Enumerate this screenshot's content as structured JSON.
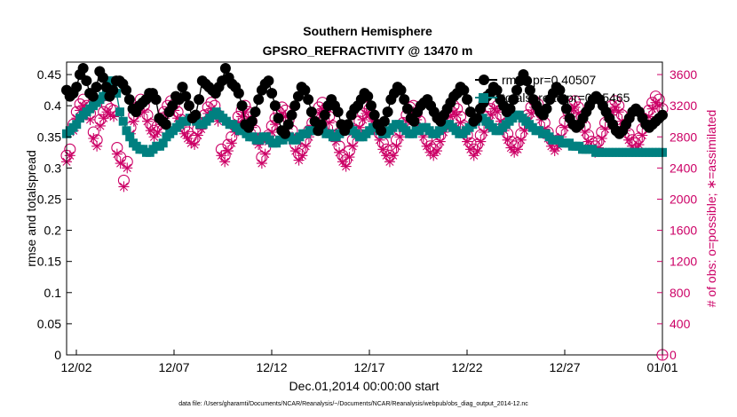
{
  "chart_data": {
    "type": "scatter",
    "title": "Southern Hemisphere",
    "subtitle": "GPSRO_REFRACTIVITY @ 13470 m",
    "xlabel": "Dec.01,2014 00:00:00 start",
    "ylabel_left": "rmse and totalspread",
    "ylabel_right": "# of obs: o=possible; ∗=assimilated",
    "footnote": "data file: /Users/gharamti/Documents/NCAR/Reanalysis/~/Documents/NCAR/Reanalysis/webpub/obs_diag_output_2014-12.nc",
    "x_ticks": [
      {
        "day": 2,
        "label": "12/02"
      },
      {
        "day": 7,
        "label": "12/07"
      },
      {
        "day": 12,
        "label": "12/12"
      },
      {
        "day": 17,
        "label": "12/17"
      },
      {
        "day": 22,
        "label": "12/22"
      },
      {
        "day": 27,
        "label": "12/27"
      },
      {
        "day": 32,
        "label": "01/01"
      }
    ],
    "xlim": [
      1.5,
      32.0
    ],
    "ylim_left": [
      0,
      0.47
    ],
    "yticks_left": [
      "0",
      "0.05",
      "0.1",
      "0.15",
      "0.2",
      "0.25",
      "0.3",
      "0.35",
      "0.4",
      "0.45"
    ],
    "ylim_right": [
      0,
      3760
    ],
    "yticks_right": [
      "0",
      "400",
      "800",
      "1200",
      "1600",
      "2000",
      "2400",
      "2800",
      "3200",
      "3600"
    ],
    "grid": false,
    "legend_position": "top-right",
    "colors": {
      "rmse": "#000000",
      "spread": "#008080",
      "obs": "#cc0066"
    },
    "series": [
      {
        "name": "rmse pr=0.40507",
        "axis": "left",
        "marker": "filled-circle",
        "color": "#000000",
        "values": [
          0.425,
          0.415,
          0.42,
          0.43,
          0.45,
          0.46,
          0.44,
          0.42,
          0.415,
          0.43,
          0.455,
          0.445,
          0.43,
          0.415,
          0.425,
          0.44,
          0.44,
          0.435,
          0.425,
          0.41,
          0.395,
          0.39,
          0.4,
          0.405,
          0.41,
          0.42,
          0.42,
          0.41,
          0.38,
          0.375,
          0.37,
          0.39,
          0.4,
          0.415,
          0.41,
          0.43,
          0.415,
          0.4,
          0.38,
          0.385,
          0.41,
          0.44,
          0.435,
          0.43,
          0.425,
          0.42,
          0.43,
          0.44,
          0.46,
          0.445,
          0.435,
          0.43,
          0.42,
          0.4,
          0.37,
          0.365,
          0.375,
          0.39,
          0.41,
          0.425,
          0.435,
          0.44,
          0.42,
          0.4,
          0.38,
          0.36,
          0.355,
          0.37,
          0.385,
          0.4,
          0.415,
          0.43,
          0.425,
          0.41,
          0.39,
          0.375,
          0.36,
          0.37,
          0.385,
          0.4,
          0.41,
          0.4,
          0.39,
          0.37,
          0.36,
          0.37,
          0.385,
          0.395,
          0.4,
          0.41,
          0.42,
          0.415,
          0.4,
          0.385,
          0.37,
          0.36,
          0.375,
          0.39,
          0.41,
          0.42,
          0.43,
          0.425,
          0.41,
          0.395,
          0.38,
          0.375,
          0.39,
          0.4,
          0.405,
          0.41,
          0.4,
          0.39,
          0.38,
          0.375,
          0.385,
          0.395,
          0.405,
          0.415,
          0.42,
          0.43,
          0.425,
          0.41,
          0.39,
          0.375,
          0.38,
          0.395,
          0.405,
          0.415,
          0.42,
          0.43,
          0.425,
          0.41,
          0.4,
          0.39,
          0.395,
          0.41,
          0.425,
          0.44,
          0.45,
          0.44,
          0.425,
          0.41,
          0.4,
          0.39,
          0.385,
          0.395,
          0.41,
          0.42,
          0.43,
          0.425,
          0.41,
          0.395,
          0.38,
          0.37,
          0.365,
          0.37,
          0.38,
          0.39,
          0.4,
          0.41,
          0.415,
          0.41,
          0.4,
          0.39,
          0.38,
          0.37,
          0.36,
          0.355,
          0.36,
          0.37,
          0.38,
          0.39,
          0.395,
          0.39,
          0.38,
          0.37,
          0.365,
          0.37,
          0.375,
          0.38,
          0.385
        ]
      },
      {
        "name": "totalspread pr=0.35465",
        "axis": "left",
        "marker": "filled-square",
        "color": "#008080",
        "values": [
          0.355,
          0.36,
          0.365,
          0.37,
          0.38,
          0.385,
          0.39,
          0.395,
          0.4,
          0.405,
          0.41,
          0.415,
          0.42,
          0.44,
          0.435,
          0.42,
          0.39,
          0.375,
          0.36,
          0.35,
          0.34,
          0.335,
          0.33,
          0.33,
          0.325,
          0.325,
          0.33,
          0.335,
          0.335,
          0.34,
          0.35,
          0.355,
          0.36,
          0.365,
          0.37,
          0.375,
          0.375,
          0.38,
          0.38,
          0.375,
          0.37,
          0.37,
          0.375,
          0.38,
          0.385,
          0.39,
          0.385,
          0.38,
          0.375,
          0.37,
          0.37,
          0.365,
          0.36,
          0.36,
          0.355,
          0.35,
          0.35,
          0.345,
          0.345,
          0.35,
          0.35,
          0.345,
          0.34,
          0.34,
          0.345,
          0.345,
          0.35,
          0.35,
          0.345,
          0.345,
          0.35,
          0.355,
          0.355,
          0.36,
          0.36,
          0.365,
          0.36,
          0.36,
          0.355,
          0.355,
          0.35,
          0.35,
          0.355,
          0.36,
          0.36,
          0.365,
          0.36,
          0.355,
          0.35,
          0.35,
          0.355,
          0.36,
          0.365,
          0.365,
          0.36,
          0.355,
          0.355,
          0.36,
          0.365,
          0.37,
          0.37,
          0.365,
          0.36,
          0.355,
          0.355,
          0.36,
          0.36,
          0.365,
          0.365,
          0.36,
          0.355,
          0.355,
          0.36,
          0.365,
          0.37,
          0.37,
          0.365,
          0.36,
          0.355,
          0.355,
          0.36,
          0.365,
          0.37,
          0.375,
          0.38,
          0.38,
          0.375,
          0.37,
          0.365,
          0.36,
          0.36,
          0.365,
          0.37,
          0.375,
          0.38,
          0.385,
          0.385,
          0.38,
          0.375,
          0.37,
          0.365,
          0.36,
          0.36,
          0.355,
          0.355,
          0.35,
          0.345,
          0.345,
          0.345,
          0.34,
          0.34,
          0.34,
          0.335,
          0.335,
          0.335,
          0.33,
          0.33,
          0.33,
          0.33,
          0.325,
          0.325,
          0.325,
          0.325,
          0.325,
          0.325,
          0.325,
          0.325,
          0.325,
          0.325,
          0.325,
          0.325,
          0.325,
          0.325,
          0.325,
          0.325,
          0.325,
          0.325,
          0.325,
          0.325,
          0.325
        ]
      },
      {
        "name": "possible",
        "axis": "right",
        "marker": "open-circle",
        "color": "#cc0066",
        "values": [
          2560,
          2640,
          2960,
          3120,
          3220,
          3280,
          3200,
          3100,
          2860,
          2760,
          3020,
          3120,
          3200,
          3160,
          3140,
          2660,
          2540,
          2240,
          2480,
          2920,
          3080,
          3180,
          3280,
          3200,
          3080,
          2960,
          2880,
          2940,
          3040,
          3120,
          3200,
          3260,
          3220,
          3120,
          3020,
          2920,
          2860,
          2800,
          2780,
          2900,
          2980,
          3080,
          3180,
          3240,
          3200,
          3080,
          2640,
          2560,
          2700,
          2800,
          2940,
          3060,
          3140,
          3200,
          3120,
          3000,
          2880,
          2780,
          2540,
          2660,
          2820,
          2940,
          3040,
          3120,
          3180,
          3140,
          3020,
          2880,
          2700,
          2580,
          2640,
          2760,
          2880,
          2980,
          3080,
          3180,
          3240,
          3160,
          3060,
          2940,
          2820,
          2680,
          2560,
          2500,
          2620,
          2760,
          2880,
          3000,
          3100,
          3180,
          3160,
          3080,
          2960,
          2840,
          2720,
          2640,
          2560,
          2640,
          2760,
          2880,
          2980,
          3080,
          3180,
          3200,
          3100,
          3000,
          2880,
          2760,
          2680,
          2640,
          2700,
          2820,
          2940,
          3040,
          3140,
          3200,
          3160,
          3060,
          2940,
          2820,
          2720,
          2640,
          2700,
          2820,
          2940,
          3060,
          3160,
          3240,
          3200,
          3080,
          2960,
          2840,
          2740,
          2680,
          2720,
          2840,
          2960,
          3080,
          3180,
          3260,
          3220,
          3100,
          2980,
          2860,
          2760,
          2700,
          2760,
          2880,
          3000,
          3120,
          3220,
          3260,
          3180,
          3060,
          2940,
          2820,
          2740,
          2680,
          2740,
          2860,
          2980,
          3100,
          3200,
          3260,
          3200,
          3080,
          2960,
          2840,
          2760,
          2720,
          2780,
          2900,
          3020,
          3140,
          3240,
          3320,
          3280,
          3160
        ]
      },
      {
        "name": "assimilated",
        "axis": "right",
        "marker": "asterisk",
        "color": "#cc0066",
        "values": [
          2480,
          2560,
          2880,
          3040,
          3140,
          3200,
          3120,
          3020,
          2780,
          2680,
          2940,
          3040,
          3120,
          3080,
          3060,
          2580,
          2460,
          2160,
          2400,
          2840,
          3000,
          3100,
          3200,
          3120,
          3000,
          2880,
          2800,
          2860,
          2960,
          3040,
          3120,
          3180,
          3140,
          3040,
          2940,
          2840,
          2780,
          2720,
          2700,
          2820,
          2900,
          3000,
          3100,
          3160,
          3120,
          3000,
          2560,
          2480,
          2620,
          2720,
          2860,
          2980,
          3060,
          3120,
          3040,
          2920,
          2800,
          2700,
          2460,
          2580,
          2740,
          2860,
          2960,
          3040,
          3100,
          3060,
          2940,
          2800,
          2620,
          2500,
          2560,
          2680,
          2800,
          2900,
          3000,
          3100,
          3160,
          3080,
          2980,
          2860,
          2740,
          2600,
          2480,
          2420,
          2540,
          2680,
          2800,
          2920,
          3020,
          3100,
          3080,
          3000,
          2880,
          2760,
          2640,
          2560,
          2480,
          2560,
          2680,
          2800,
          2900,
          3000,
          3100,
          3120,
          3020,
          2920,
          2800,
          2680,
          2600,
          2560,
          2620,
          2740,
          2860,
          2960,
          3060,
          3120,
          3080,
          2980,
          2860,
          2740,
          2640,
          2560,
          2620,
          2740,
          2860,
          2980,
          3080,
          3160,
          3120,
          3000,
          2880,
          2760,
          2660,
          2600,
          2640,
          2760,
          2880,
          3000,
          3100,
          3180,
          3140,
          3020,
          2900,
          2780,
          2680,
          2620,
          2680,
          2800,
          2920,
          3040,
          3140,
          3180,
          3100,
          2980,
          2860,
          2740,
          2660,
          2600,
          2660,
          2780,
          2900,
          3020,
          3120,
          3180,
          3120,
          3000,
          2880,
          2760,
          2680,
          2640,
          2700,
          2820,
          2940,
          3060,
          3160,
          3240,
          3200,
          3080
        ]
      }
    ]
  }
}
